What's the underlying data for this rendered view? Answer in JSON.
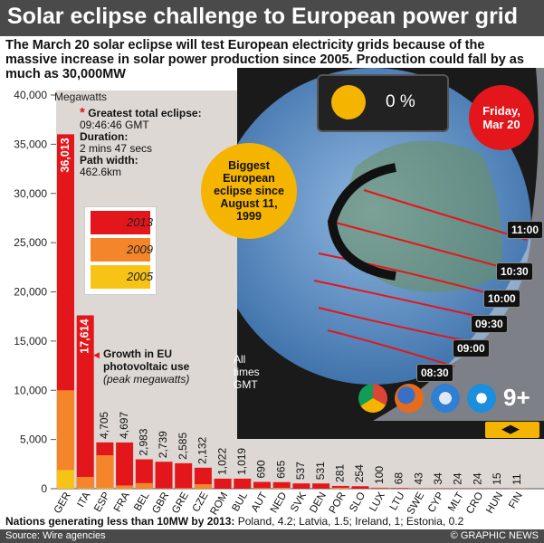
{
  "header": {
    "title": "Solar eclipse challenge to European power grid"
  },
  "intro": "The March 20 solar eclipse will test European electricity grids because of the massive increase in solar power production since 2005. Production could fall by as much as 30,000MW",
  "eclipse": {
    "greatest_label": "Greatest total eclipse:",
    "greatest_value": "09:46:46 GMT",
    "duration_label": "Duration:",
    "duration_value": "2 mins 47 secs",
    "path_label": "Path width:",
    "path_value": "462.6km"
  },
  "legend_items": [
    "2013",
    "2009",
    "2005"
  ],
  "growth": {
    "title": "Growth in EU photovoltaic use",
    "subtitle": "(peak megawatts)"
  },
  "map": {
    "percent": "0 %",
    "date_badge_line1": "Friday,",
    "date_badge_line2": "Mar 20",
    "biggest_text": "Biggest European eclipse since August 11, 1999",
    "times": [
      "11:00",
      "10:30",
      "10:00",
      "09:30",
      "09:00",
      "08:30"
    ],
    "all_times_line1": "All",
    "all_times_line2": "times",
    "all_times_line3": "GMT",
    "nine_plus": "9+",
    "slider_arrows": "◀▶",
    "browser_icons": [
      "chrome-icon",
      "firefox-icon",
      "safari-icon",
      "ie-icon"
    ]
  },
  "footer": {
    "note_label": "Nations generating less than 10MW by 2013:",
    "note_value": "Poland, 4.2; Latvia, 1.5; Ireland, 1; Estonia, 0.2",
    "source": "Source: Wire agencies",
    "credit": "© GRAPHIC NEWS"
  },
  "colors": {
    "y2013": "#e3161b",
    "y2009": "#f5852a",
    "y2005": "#f8c317",
    "plot_bg": "#ddd8d4"
  },
  "chart_data": {
    "type": "bar",
    "ylabel": "Megawatts",
    "ylim": [
      0,
      40000
    ],
    "yticks": [
      0,
      5000,
      10000,
      15000,
      20000,
      25000,
      30000,
      35000,
      40000
    ],
    "ytick_labels": [
      "0",
      "5,000",
      "10,000",
      "15,000",
      "20,000",
      "25,000",
      "30,000",
      "35,000",
      "40,000"
    ],
    "categories": [
      "GER",
      "ITA",
      "ESP",
      "FRA",
      "BEL",
      "GBR",
      "GRE",
      "CZE",
      "ROM",
      "BUL",
      "AUT",
      "NED",
      "SVK",
      "DEN",
      "POR",
      "SLO",
      "LUX",
      "LTU",
      "SWE",
      "CYP",
      "MLT",
      "CRO",
      "HUN",
      "FIN"
    ],
    "series": [
      {
        "name": "2013",
        "values": [
          36013,
          17614,
          4705,
          4697,
          2983,
          2739,
          2585,
          2132,
          1022,
          1019,
          690,
          665,
          537,
          531,
          281,
          254,
          100,
          68,
          43,
          34,
          24,
          24,
          15,
          11
        ]
      },
      {
        "name": "2009",
        "values": [
          10000,
          1200,
          3400,
          330,
          570,
          30,
          60,
          460,
          0.5,
          6,
          53,
          68,
          0.2,
          5,
          102,
          1,
          26,
          0.1,
          9,
          3,
          1.5,
          0,
          0.7,
          8
        ]
      },
      {
        "name": "2005",
        "values": [
          1900,
          37,
          60,
          30,
          2,
          11,
          5,
          0.5,
          0,
          0,
          24,
          51,
          0,
          3,
          3,
          0,
          23,
          0,
          4,
          0.5,
          0,
          0,
          0.3,
          4
        ]
      }
    ],
    "data_labels": [
      "36,013",
      "17,614",
      "4,705",
      "4,697",
      "2,983",
      "2,739",
      "2,585",
      "2,132",
      "1,022",
      "1,019",
      "690",
      "665",
      "537",
      "531",
      "281",
      "254",
      "100",
      "68",
      "43",
      "34",
      "24",
      "24",
      "15",
      "11"
    ]
  }
}
